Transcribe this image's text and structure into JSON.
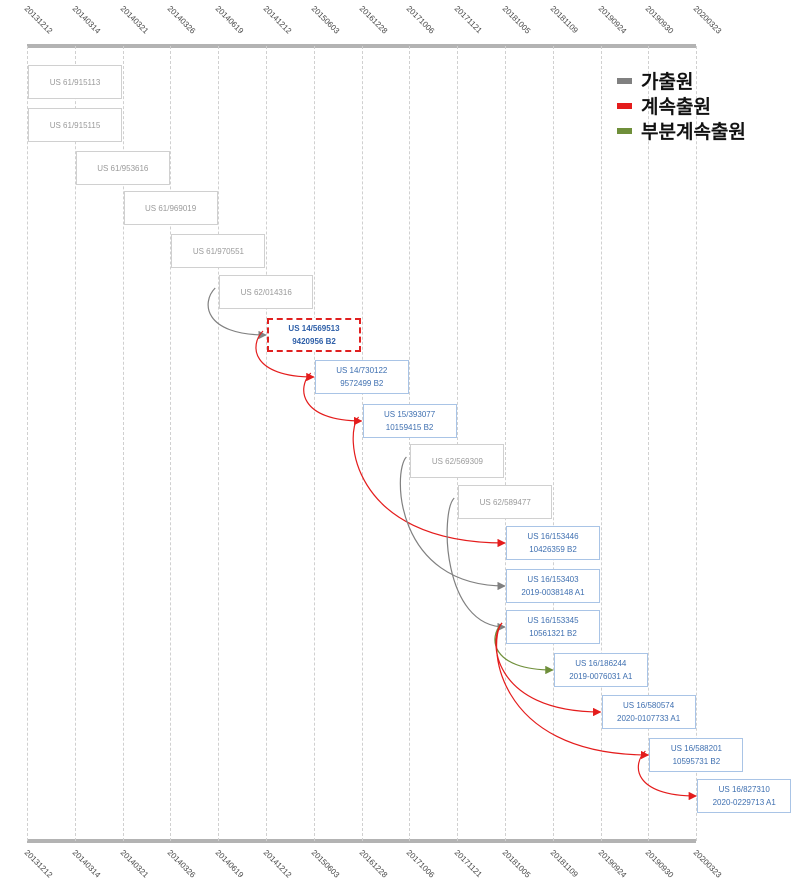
{
  "dates": [
    "20131212",
    "20140314",
    "20140321",
    "20140326",
    "20140619",
    "20141212",
    "20150603",
    "20161228",
    "20171006",
    "20171121",
    "20181005",
    "20181109",
    "20190924",
    "20190930",
    "20200323"
  ],
  "legend": [
    {
      "label": "가출원",
      "color": "#808080"
    },
    {
      "label": "계속출원",
      "color": "#e41c1c"
    },
    {
      "label": "부분계속출원",
      "color": "#6f8f3a"
    }
  ],
  "applications": [
    {
      "id": "p1",
      "col": 0,
      "number": "US 61/915113",
      "pub": "",
      "kind": "prov"
    },
    {
      "id": "p2",
      "col": 0,
      "number": "US 61/915115",
      "pub": "",
      "kind": "prov"
    },
    {
      "id": "p3",
      "col": 1,
      "number": "US 61/953616",
      "pub": "",
      "kind": "prov"
    },
    {
      "id": "p4",
      "col": 2,
      "number": "US 61/969019",
      "pub": "",
      "kind": "prov"
    },
    {
      "id": "p5",
      "col": 3,
      "number": "US 61/970551",
      "pub": "",
      "kind": "prov"
    },
    {
      "id": "p6",
      "col": 4,
      "number": "US 62/014316",
      "pub": "",
      "kind": "prov"
    },
    {
      "id": "a1",
      "col": 5,
      "number": "US 14/569513",
      "pub": "9420956 B2",
      "kind": "focus"
    },
    {
      "id": "a2",
      "col": 6,
      "number": "US 14/730122",
      "pub": "9572499 B2",
      "kind": "pat"
    },
    {
      "id": "a3",
      "col": 7,
      "number": "US 15/393077",
      "pub": "10159415 B2",
      "kind": "pat"
    },
    {
      "id": "p7",
      "col": 8,
      "number": "US 62/569309",
      "pub": "",
      "kind": "prov"
    },
    {
      "id": "p8",
      "col": 9,
      "number": "US 62/589477",
      "pub": "",
      "kind": "prov"
    },
    {
      "id": "a4",
      "col": 10,
      "number": "US 16/153446",
      "pub": "10426359 B2",
      "kind": "pat"
    },
    {
      "id": "a5",
      "col": 10,
      "number": "US 16/153403",
      "pub": "2019-0038148 A1",
      "kind": "pat"
    },
    {
      "id": "a6",
      "col": 10,
      "number": "US 16/153345",
      "pub": "10561321 B2",
      "kind": "pat"
    },
    {
      "id": "a7",
      "col": 11,
      "number": "US 16/186244",
      "pub": "2019-0076031 A1",
      "kind": "pat"
    },
    {
      "id": "a8",
      "col": 12,
      "number": "US 16/580574",
      "pub": "2020-0107733 A1",
      "kind": "pat"
    },
    {
      "id": "a9",
      "col": 13,
      "number": "US 16/588201",
      "pub": "10595731 B2",
      "kind": "pat"
    },
    {
      "id": "a10",
      "col": 14,
      "number": "US 16/827310",
      "pub": "2020-0229713 A1",
      "kind": "pat"
    }
  ],
  "links": [
    {
      "from": "p6",
      "to": "a1",
      "type": "provisional"
    },
    {
      "from": "a1",
      "to": "a2",
      "type": "continuation"
    },
    {
      "from": "a2",
      "to": "a3",
      "type": "continuation"
    },
    {
      "from": "a3",
      "to": "a4",
      "type": "continuation"
    },
    {
      "from": "p7",
      "to": "a5",
      "type": "provisional"
    },
    {
      "from": "p8",
      "to": "a6",
      "type": "provisional"
    },
    {
      "from": "a6",
      "to": "a7",
      "type": "cip"
    },
    {
      "from": "a6",
      "to": "a8",
      "type": "continuation"
    },
    {
      "from": "a6",
      "to": "a9",
      "type": "continuation"
    },
    {
      "from": "a9",
      "to": "a10",
      "type": "continuation"
    }
  ]
}
